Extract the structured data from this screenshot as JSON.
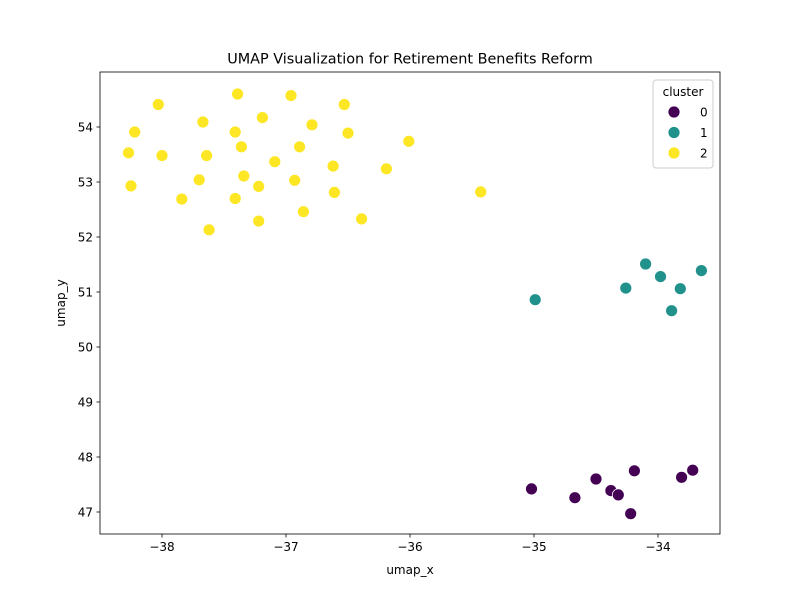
{
  "chart_data": {
    "type": "scatter",
    "title": "UMAP Visualization for Retirement Benefits Reform",
    "xlabel": "umap_x",
    "ylabel": "umap_y",
    "xlim": [
      -38.5,
      -33.5
    ],
    "ylim": [
      46.6,
      55.0
    ],
    "xticks": [
      -38,
      -37,
      -36,
      -35,
      -34
    ],
    "yticks": [
      47,
      48,
      49,
      50,
      51,
      52,
      53,
      54
    ],
    "grid": false,
    "legend": {
      "title": "cluster",
      "placement": "top-right"
    },
    "series": [
      {
        "name": "0",
        "color": "#440154",
        "points": [
          [
            -35.02,
            47.42
          ],
          [
            -34.67,
            47.26
          ],
          [
            -34.5,
            47.6
          ],
          [
            -34.38,
            47.39
          ],
          [
            -34.32,
            47.31
          ],
          [
            -34.22,
            46.97
          ],
          [
            -34.19,
            47.75
          ],
          [
            -33.81,
            47.63
          ],
          [
            -33.72,
            47.76
          ]
        ]
      },
      {
        "name": "1",
        "color": "#21918c",
        "points": [
          [
            -34.99,
            50.86
          ],
          [
            -34.26,
            51.07
          ],
          [
            -34.1,
            51.51
          ],
          [
            -33.98,
            51.28
          ],
          [
            -33.89,
            50.66
          ],
          [
            -33.82,
            51.06
          ],
          [
            -33.65,
            51.39
          ]
        ]
      },
      {
        "name": "2",
        "color": "#fde725",
        "points": [
          [
            -38.27,
            53.53
          ],
          [
            -38.25,
            52.93
          ],
          [
            -38.22,
            53.91
          ],
          [
            -38.03,
            54.41
          ],
          [
            -38.0,
            53.48
          ],
          [
            -37.84,
            52.69
          ],
          [
            -37.7,
            53.04
          ],
          [
            -37.67,
            54.09
          ],
          [
            -37.64,
            53.48
          ],
          [
            -37.62,
            52.13
          ],
          [
            -37.41,
            53.91
          ],
          [
            -37.41,
            52.7
          ],
          [
            -37.39,
            54.6
          ],
          [
            -37.36,
            53.64
          ],
          [
            -37.34,
            53.11
          ],
          [
            -37.22,
            52.92
          ],
          [
            -37.22,
            52.29
          ],
          [
            -37.19,
            54.17
          ],
          [
            -37.09,
            53.37
          ],
          [
            -36.96,
            54.57
          ],
          [
            -36.93,
            53.03
          ],
          [
            -36.89,
            53.64
          ],
          [
            -36.86,
            52.46
          ],
          [
            -36.79,
            54.04
          ],
          [
            -36.62,
            53.29
          ],
          [
            -36.61,
            52.81
          ],
          [
            -36.53,
            54.41
          ],
          [
            -36.5,
            53.89
          ],
          [
            -36.39,
            52.33
          ],
          [
            -36.19,
            53.24
          ],
          [
            -36.01,
            53.74
          ],
          [
            -35.43,
            52.82
          ]
        ]
      }
    ]
  }
}
